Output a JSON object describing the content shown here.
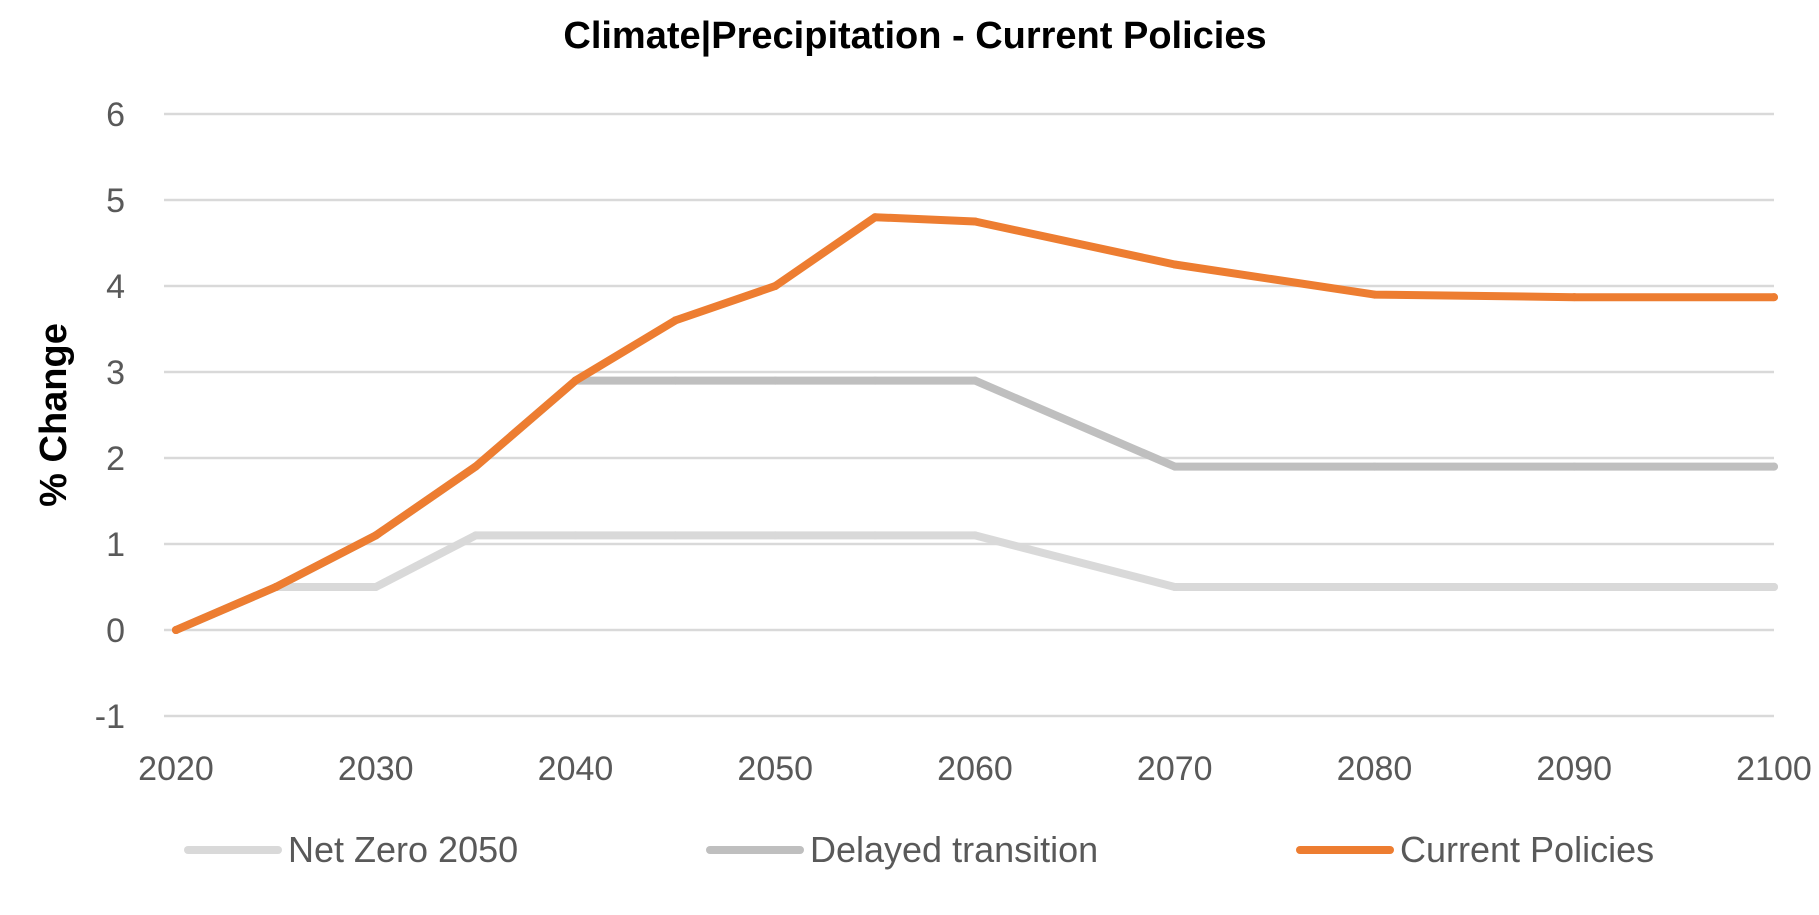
{
  "chart_data": {
    "type": "line",
    "title": "Climate|Precipitation - Current Policies",
    "xlabel": "",
    "ylabel": "% Change",
    "x": [
      2020,
      2025,
      2030,
      2035,
      2040,
      2045,
      2050,
      2055,
      2060,
      2070,
      2080,
      2090,
      2100
    ],
    "x_ticks": [
      "2020",
      "2030",
      "2040",
      "2050",
      "2060",
      "2070",
      "2080",
      "2090",
      "2100"
    ],
    "y_ticks": [
      "-1",
      "0",
      "1",
      "2",
      "3",
      "4",
      "5",
      "6"
    ],
    "ylim": [
      -1,
      6
    ],
    "grid": "horizontal",
    "legend_position": "bottom",
    "series": [
      {
        "name": "Net Zero 2050",
        "color": "#d9d9d9",
        "values": [
          0,
          0.5,
          0.5,
          1.1,
          1.1,
          1.1,
          1.1,
          1.1,
          1.1,
          0.5,
          0.5,
          0.5,
          0.5
        ]
      },
      {
        "name": "Delayed transition",
        "color": "#bfbfbf",
        "values": [
          0,
          0.5,
          1.1,
          1.9,
          2.9,
          2.9,
          2.9,
          2.9,
          2.9,
          1.9,
          1.9,
          1.9,
          1.9
        ]
      },
      {
        "name": "Current Policies",
        "color": "#ed7d31",
        "values": [
          0,
          0.5,
          1.1,
          1.9,
          2.9,
          3.6,
          4.0,
          4.8,
          4.75,
          4.25,
          3.9,
          3.87,
          3.87
        ]
      }
    ]
  }
}
